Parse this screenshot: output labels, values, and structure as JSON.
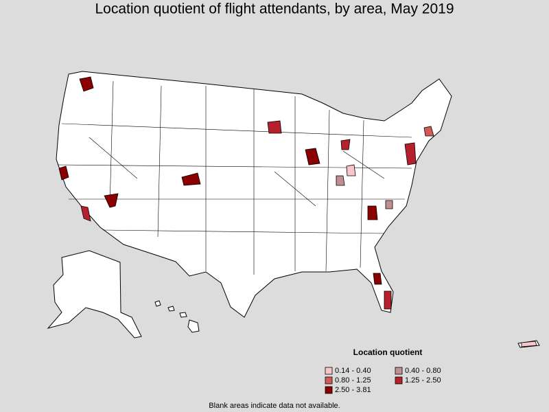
{
  "title": "Location quotient of flight attendants, by area, May 2019",
  "legend": {
    "title": "Location quotient",
    "items": [
      {
        "label": "0.14 - 0.40",
        "color": "#f8c6c8"
      },
      {
        "label": "0.40 - 0.80",
        "color": "#c09090"
      },
      {
        "label": "0.80 - 1.25",
        "color": "#d05a5a"
      },
      {
        "label": "1.25 - 2.50",
        "color": "#b5202c"
      },
      {
        "label": "2.50 - 3.81",
        "color": "#8b0000"
      }
    ]
  },
  "footnote": "Blank areas indicate data not available."
}
